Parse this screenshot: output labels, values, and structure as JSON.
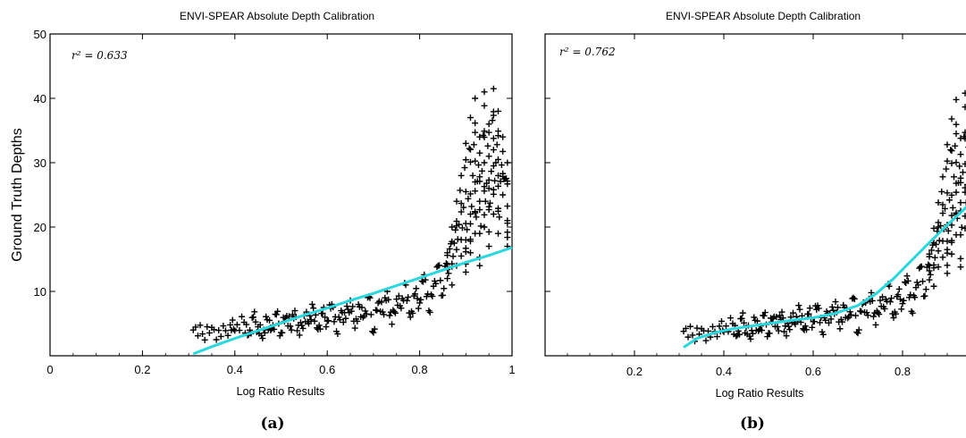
{
  "chart_data": [
    {
      "type": "scatter",
      "panel": "(a)",
      "title": "ENVI-SPEAR Absolute Depth Calibration",
      "xlabel": "Log Ratio Results",
      "ylabel": "Ground Truth Depths",
      "annotation": "r² = 0.633",
      "xlim": [
        0,
        1
      ],
      "ylim": [
        0,
        50
      ],
      "xticks": [
        0,
        0.2,
        0.4,
        0.6,
        0.8,
        1
      ],
      "xtick_labels": [
        "0",
        "0.2",
        "0.4",
        "0.6",
        "0.8",
        "1"
      ],
      "yticks": [
        10,
        20,
        30,
        40,
        50
      ],
      "ytick_labels": [
        "10",
        "20",
        "30",
        "40",
        "50"
      ],
      "grid": false,
      "series": [
        {
          "kind": "points",
          "color": "#000000",
          "marker": "plus",
          "points": [
            [
              0.31,
              4.0
            ],
            [
              0.33,
              3.4
            ],
            [
              0.35,
              4.4
            ],
            [
              0.37,
              3.0
            ],
            [
              0.39,
              4.8
            ],
            [
              0.4,
              3.9
            ],
            [
              0.42,
              5.2
            ],
            [
              0.43,
              3.3
            ],
            [
              0.44,
              6.0
            ],
            [
              0.45,
              4.5
            ],
            [
              0.46,
              2.7
            ],
            [
              0.47,
              5.6
            ],
            [
              0.48,
              4.2
            ],
            [
              0.49,
              6.4
            ],
            [
              0.5,
              3.6
            ],
            [
              0.51,
              5.9
            ],
            [
              0.52,
              4.6
            ],
            [
              0.53,
              7.0
            ],
            [
              0.54,
              3.2
            ],
            [
              0.55,
              6.2
            ],
            [
              0.56,
              5.0
            ],
            [
              0.57,
              7.4
            ],
            [
              0.58,
              4.1
            ],
            [
              0.59,
              6.6
            ],
            [
              0.6,
              5.4
            ],
            [
              0.61,
              8.0
            ],
            [
              0.62,
              3.8
            ],
            [
              0.63,
              7.0
            ],
            [
              0.64,
              5.8
            ],
            [
              0.65,
              8.6
            ],
            [
              0.66,
              4.3
            ],
            [
              0.67,
              7.6
            ],
            [
              0.68,
              6.2
            ],
            [
              0.69,
              9.2
            ],
            [
              0.7,
              3.6
            ],
            [
              0.71,
              8.2
            ],
            [
              0.72,
              6.8
            ],
            [
              0.73,
              10.0
            ],
            [
              0.74,
              4.9
            ],
            [
              0.75,
              8.8
            ],
            [
              0.76,
              7.4
            ],
            [
              0.77,
              11.0
            ],
            [
              0.78,
              6.0
            ],
            [
              0.79,
              9.6
            ],
            [
              0.8,
              8.2
            ],
            [
              0.81,
              12.6
            ],
            [
              0.82,
              7.0
            ],
            [
              0.83,
              10.8
            ],
            [
              0.84,
              14.0
            ],
            [
              0.85,
              9.4
            ],
            [
              0.86,
              16.0
            ],
            [
              0.86,
              12.0
            ],
            [
              0.87,
              20.0
            ],
            [
              0.87,
              11.0
            ],
            [
              0.88,
              24.0
            ],
            [
              0.88,
              14.0
            ],
            [
              0.89,
              28.0
            ],
            [
              0.89,
              15.5
            ],
            [
              0.9,
              33.0
            ],
            [
              0.9,
              18.0
            ],
            [
              0.9,
              13.0
            ],
            [
              0.91,
              37.0
            ],
            [
              0.91,
              22.0
            ],
            [
              0.91,
              16.0
            ],
            [
              0.92,
              40.0
            ],
            [
              0.92,
              27.0
            ],
            [
              0.92,
              19.0
            ],
            [
              0.93,
              34.0
            ],
            [
              0.93,
              24.0
            ],
            [
              0.93,
              14.0
            ],
            [
              0.94,
              41.0
            ],
            [
              0.94,
              30.0
            ],
            [
              0.94,
              20.0
            ],
            [
              0.95,
              36.0
            ],
            [
              0.95,
              26.0
            ],
            [
              0.95,
              17.0
            ],
            [
              0.96,
              41.5
            ],
            [
              0.96,
              32.0
            ],
            [
              0.96,
              22.0
            ],
            [
              0.97,
              38.0
            ],
            [
              0.97,
              28.0
            ],
            [
              0.97,
              19.0
            ],
            [
              0.98,
              34.0
            ],
            [
              0.98,
              25.0
            ],
            [
              0.99,
              30.0
            ],
            [
              0.99,
              21.0
            ],
            [
              0.99,
              17.0
            ]
          ]
        },
        {
          "kind": "fit",
          "color": "#29d8df",
          "points": [
            [
              0.31,
              0.3
            ],
            [
              0.35,
              1.4
            ],
            [
              0.4,
              2.7
            ],
            [
              0.45,
              3.9
            ],
            [
              0.5,
              5.1
            ],
            [
              0.55,
              6.3
            ],
            [
              0.6,
              7.4
            ],
            [
              0.65,
              8.6
            ],
            [
              0.7,
              9.7
            ],
            [
              0.75,
              10.9
            ],
            [
              0.8,
              12.1
            ],
            [
              0.85,
              13.3
            ],
            [
              0.9,
              14.5
            ],
            [
              0.95,
              15.6
            ],
            [
              1.0,
              16.8
            ]
          ]
        }
      ]
    },
    {
      "type": "scatter",
      "panel": "(b)",
      "title": "ENVI-SPEAR Absolute Depth Calibration",
      "xlabel": "Log Ratio Results",
      "annotation": "r² = 0.762",
      "xlim": [
        0,
        1
      ],
      "ylim": [
        0,
        50
      ],
      "xticks": [
        0.2,
        0.4,
        0.6,
        0.8
      ],
      "xtick_labels": [
        "0.2",
        "0.4",
        "0.6",
        "0.8"
      ],
      "yticks": [
        10,
        20,
        30,
        40,
        50
      ],
      "grid": false,
      "series": [
        {
          "kind": "points",
          "color": "#000000",
          "marker": "plus",
          "points": [
            [
              0.31,
              3.8
            ],
            [
              0.33,
              3.2
            ],
            [
              0.35,
              4.2
            ],
            [
              0.37,
              2.9
            ],
            [
              0.39,
              4.6
            ],
            [
              0.4,
              3.7
            ],
            [
              0.42,
              5.0
            ],
            [
              0.43,
              3.2
            ],
            [
              0.44,
              5.8
            ],
            [
              0.45,
              4.4
            ],
            [
              0.46,
              2.6
            ],
            [
              0.47,
              5.5
            ],
            [
              0.48,
              4.1
            ],
            [
              0.49,
              6.2
            ],
            [
              0.5,
              3.5
            ],
            [
              0.51,
              5.8
            ],
            [
              0.52,
              4.5
            ],
            [
              0.53,
              6.8
            ],
            [
              0.54,
              3.1
            ],
            [
              0.55,
              6.0
            ],
            [
              0.56,
              4.9
            ],
            [
              0.57,
              7.2
            ],
            [
              0.58,
              4.0
            ],
            [
              0.59,
              6.5
            ],
            [
              0.6,
              5.3
            ],
            [
              0.61,
              7.8
            ],
            [
              0.62,
              3.7
            ],
            [
              0.63,
              6.9
            ],
            [
              0.64,
              5.7
            ],
            [
              0.65,
              8.4
            ],
            [
              0.66,
              4.2
            ],
            [
              0.67,
              7.5
            ],
            [
              0.68,
              6.1
            ],
            [
              0.69,
              9.0
            ],
            [
              0.7,
              3.5
            ],
            [
              0.71,
              8.0
            ],
            [
              0.72,
              6.7
            ],
            [
              0.73,
              9.8
            ],
            [
              0.74,
              4.8
            ],
            [
              0.75,
              8.6
            ],
            [
              0.76,
              7.3
            ],
            [
              0.77,
              10.8
            ],
            [
              0.78,
              5.9
            ],
            [
              0.79,
              9.5
            ],
            [
              0.8,
              8.1
            ],
            [
              0.81,
              12.4
            ],
            [
              0.82,
              6.9
            ],
            [
              0.83,
              10.6
            ],
            [
              0.84,
              13.8
            ],
            [
              0.85,
              9.3
            ],
            [
              0.86,
              15.8
            ],
            [
              0.86,
              11.8
            ],
            [
              0.87,
              19.8
            ],
            [
              0.87,
              10.8
            ],
            [
              0.88,
              23.8
            ],
            [
              0.88,
              13.8
            ],
            [
              0.89,
              27.8
            ],
            [
              0.89,
              15.3
            ],
            [
              0.9,
              32.8
            ],
            [
              0.9,
              17.8
            ],
            [
              0.9,
              12.8
            ],
            [
              0.91,
              36.8
            ],
            [
              0.91,
              21.8
            ],
            [
              0.91,
              15.8
            ],
            [
              0.92,
              39.8
            ],
            [
              0.92,
              26.8
            ],
            [
              0.92,
              18.8
            ],
            [
              0.93,
              33.8
            ],
            [
              0.93,
              23.8
            ],
            [
              0.93,
              13.8
            ],
            [
              0.94,
              40.8
            ],
            [
              0.94,
              29.8
            ],
            [
              0.94,
              19.8
            ],
            [
              0.95,
              35.8
            ],
            [
              0.95,
              25.8
            ],
            [
              0.95,
              16.8
            ],
            [
              0.96,
              41.3
            ],
            [
              0.96,
              31.8
            ],
            [
              0.96,
              21.8
            ],
            [
              0.97,
              37.8
            ],
            [
              0.97,
              27.8
            ],
            [
              0.97,
              18.8
            ],
            [
              0.98,
              33.8
            ],
            [
              0.98,
              24.8
            ],
            [
              0.99,
              29.8
            ],
            [
              0.99,
              20.8
            ],
            [
              0.99,
              16.8
            ]
          ]
        },
        {
          "kind": "fit",
          "color": "#29d8df",
          "points": [
            [
              0.31,
              1.3
            ],
            [
              0.34,
              2.7
            ],
            [
              0.38,
              3.6
            ],
            [
              0.42,
              4.2
            ],
            [
              0.46,
              4.6
            ],
            [
              0.5,
              5.0
            ],
            [
              0.55,
              5.5
            ],
            [
              0.6,
              5.9
            ],
            [
              0.65,
              6.6
            ],
            [
              0.7,
              7.8
            ],
            [
              0.74,
              9.6
            ],
            [
              0.78,
              12.0
            ],
            [
              0.82,
              14.8
            ],
            [
              0.86,
              17.6
            ],
            [
              0.9,
              20.3
            ],
            [
              0.94,
              22.9
            ],
            [
              0.97,
              25.0
            ],
            [
              1.0,
              27.0
            ]
          ]
        }
      ]
    }
  ],
  "captions": [
    "(a)",
    "(b)"
  ]
}
